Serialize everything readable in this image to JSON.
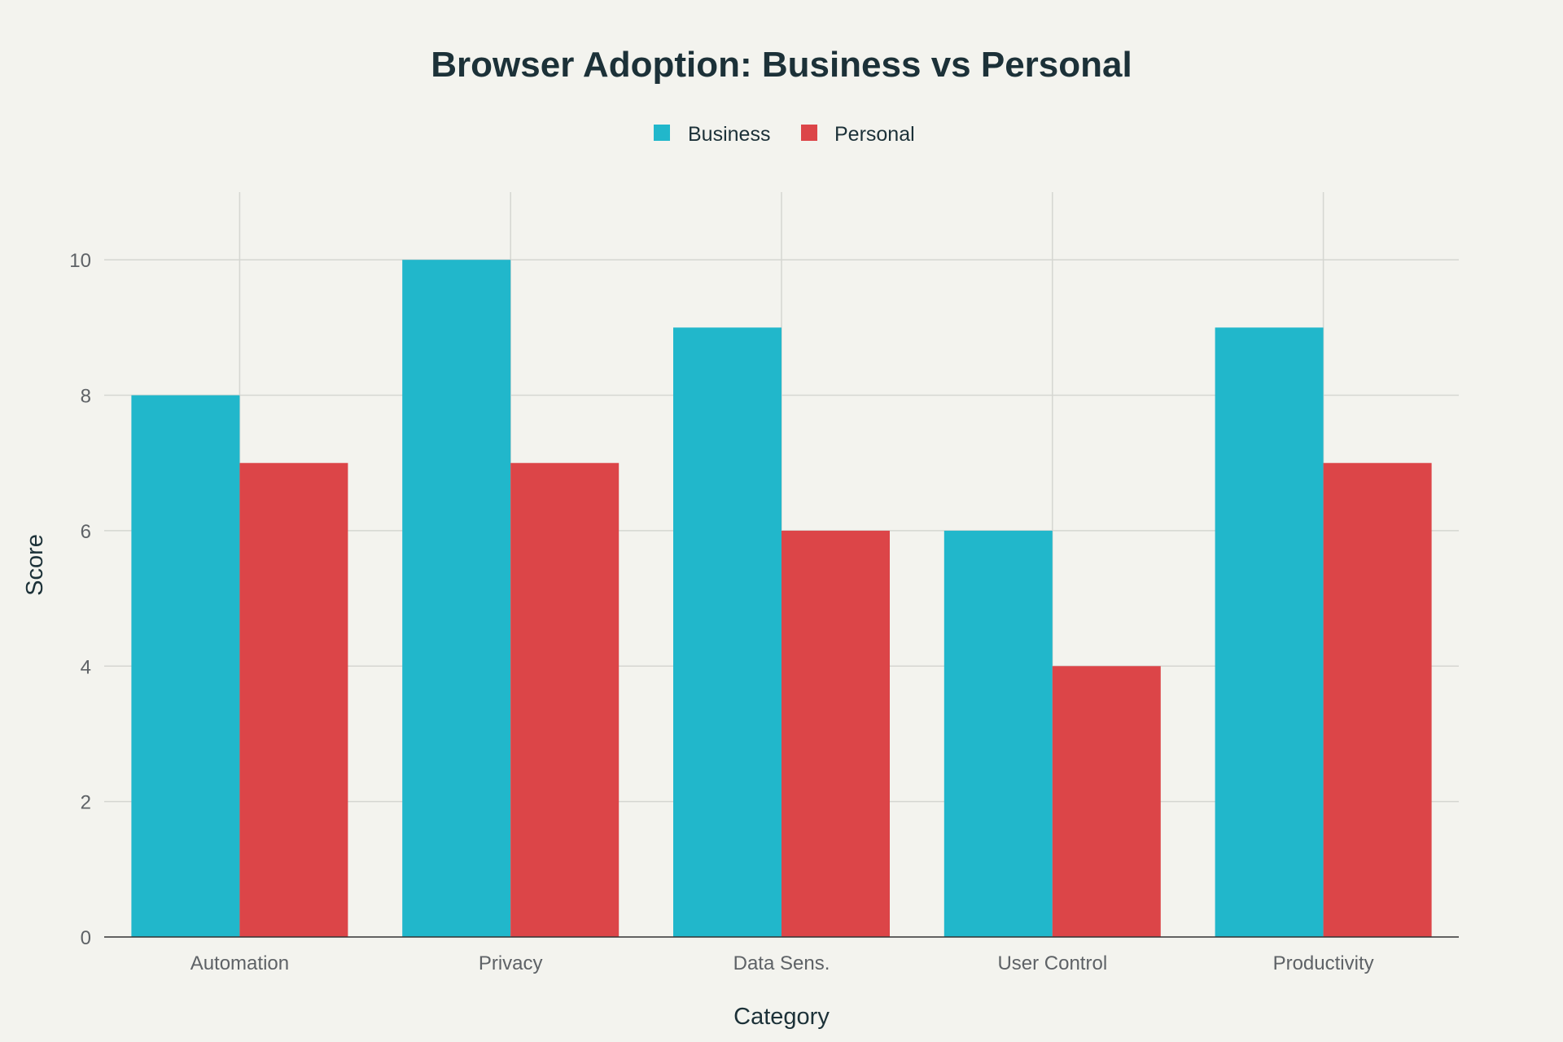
{
  "chart_data": {
    "type": "bar",
    "title": "Browser Adoption: Business vs Personal",
    "xlabel": "Category",
    "ylabel": "Score",
    "categories": [
      "Automation",
      "Privacy",
      "Data Sens.",
      "User Control",
      "Productivity"
    ],
    "series": [
      {
        "name": "Business",
        "color": "#21b7cb",
        "values": [
          8,
          10,
          9,
          6,
          9
        ]
      },
      {
        "name": "Personal",
        "color": "#dc4548",
        "values": [
          7,
          7,
          6,
          4,
          7
        ]
      }
    ],
    "ylim": [
      0,
      11
    ],
    "yticks": [
      0,
      2,
      4,
      6,
      8,
      10
    ],
    "grid": true,
    "legend_position": "top-center"
  }
}
